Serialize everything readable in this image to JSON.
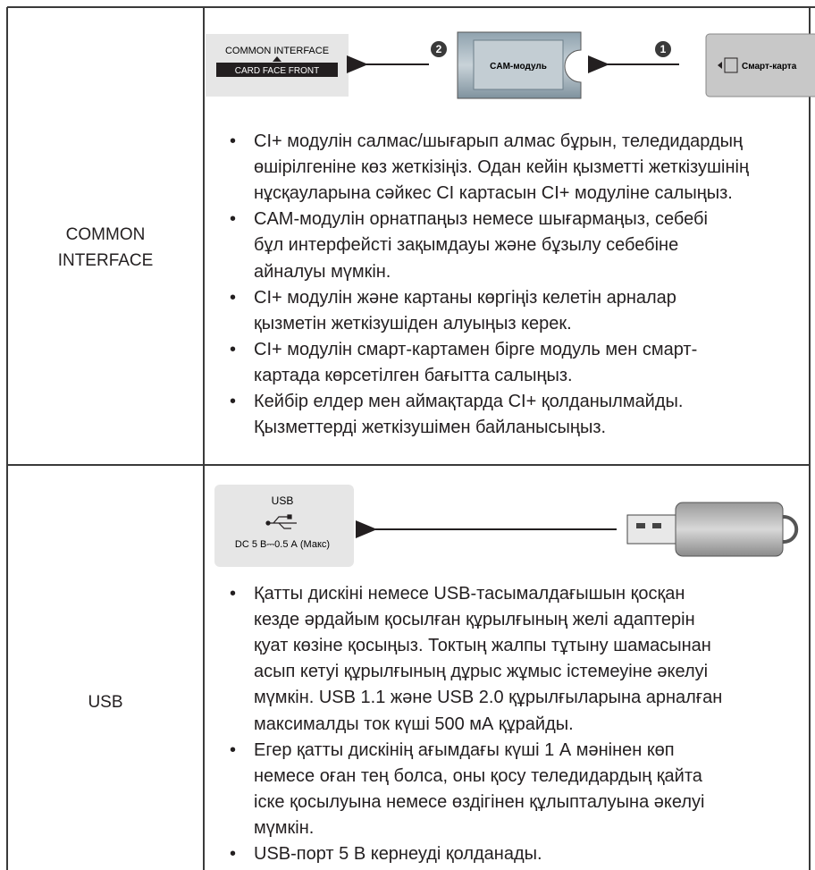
{
  "rows": [
    {
      "label": [
        "COMMON",
        "INTERFACE"
      ],
      "diagram": {
        "port_title": "COMMON INTERFACE",
        "port_sub": "CARD FACE FRONT",
        "step2": "2",
        "module": "CAM-модуль",
        "step1": "1",
        "card": "Смарт-карта"
      },
      "bullets": [
        [
          "CI+ модулін салмас/шығарып алмас бұрын, теледидардың",
          "өшірілгеніне көз жеткізіңіз. Одан кейін қызметті жеткізушінің",
          "нұсқауларына сәйкес CI картасын CI+ модуліне салыңыз."
        ],
        [
          "CAM-модулін орнатпаңыз немесе шығармаңыз, себебі",
          "бұл интерфейсті зақымдауы және бұзылу себебіне",
          "айналуы мүмкін."
        ],
        [
          "CI+ модулін және картаны көргіңіз келетін арналар",
          "қызметін жеткізушіден алуыңыз керек."
        ],
        [
          "CI+ модулін смарт-картамен бірге модуль мен смарт-",
          "картада көрсетілген бағытта салыңыз."
        ],
        [
          "Кейбір елдер мен аймақтарда CI+ қолданылмайды.",
          "Қызметтерді жеткізушімен байланысыңыз."
        ]
      ]
    },
    {
      "label": [
        "USB"
      ],
      "diagram": {
        "port_title": "USB",
        "port_sub": "DC 5 В⎓0.5 А (Макс)"
      },
      "bullets": [
        [
          "Қатты дискіні немесе USB-тасымалдағышын қосқан",
          "кезде әрдайым қосылған құрылғының желі адаптерін",
          "қуат көзіне қосыңыз. Токтың жалпы тұтыну шамасынан",
          "асып кетуі құрылғының дұрыс жұмыс істемеуіне әкелуі",
          "мүмкін. USB 1.1 және USB 2.0 құрылғыларына арналған",
          "максималды ток күші 500 мА құрайды."
        ],
        [
          "Егер қатты дискінің ағымдағы күші 1 А мәнінен көп",
          "немесе оған тең болса, оны қосу теледидардың қайта",
          "іске қосылуына немесе өздігінен құлыпталуына әкелуі",
          "мүмкін."
        ],
        [
          "USB-порт 5 В кернеуді қолданады."
        ]
      ]
    }
  ]
}
